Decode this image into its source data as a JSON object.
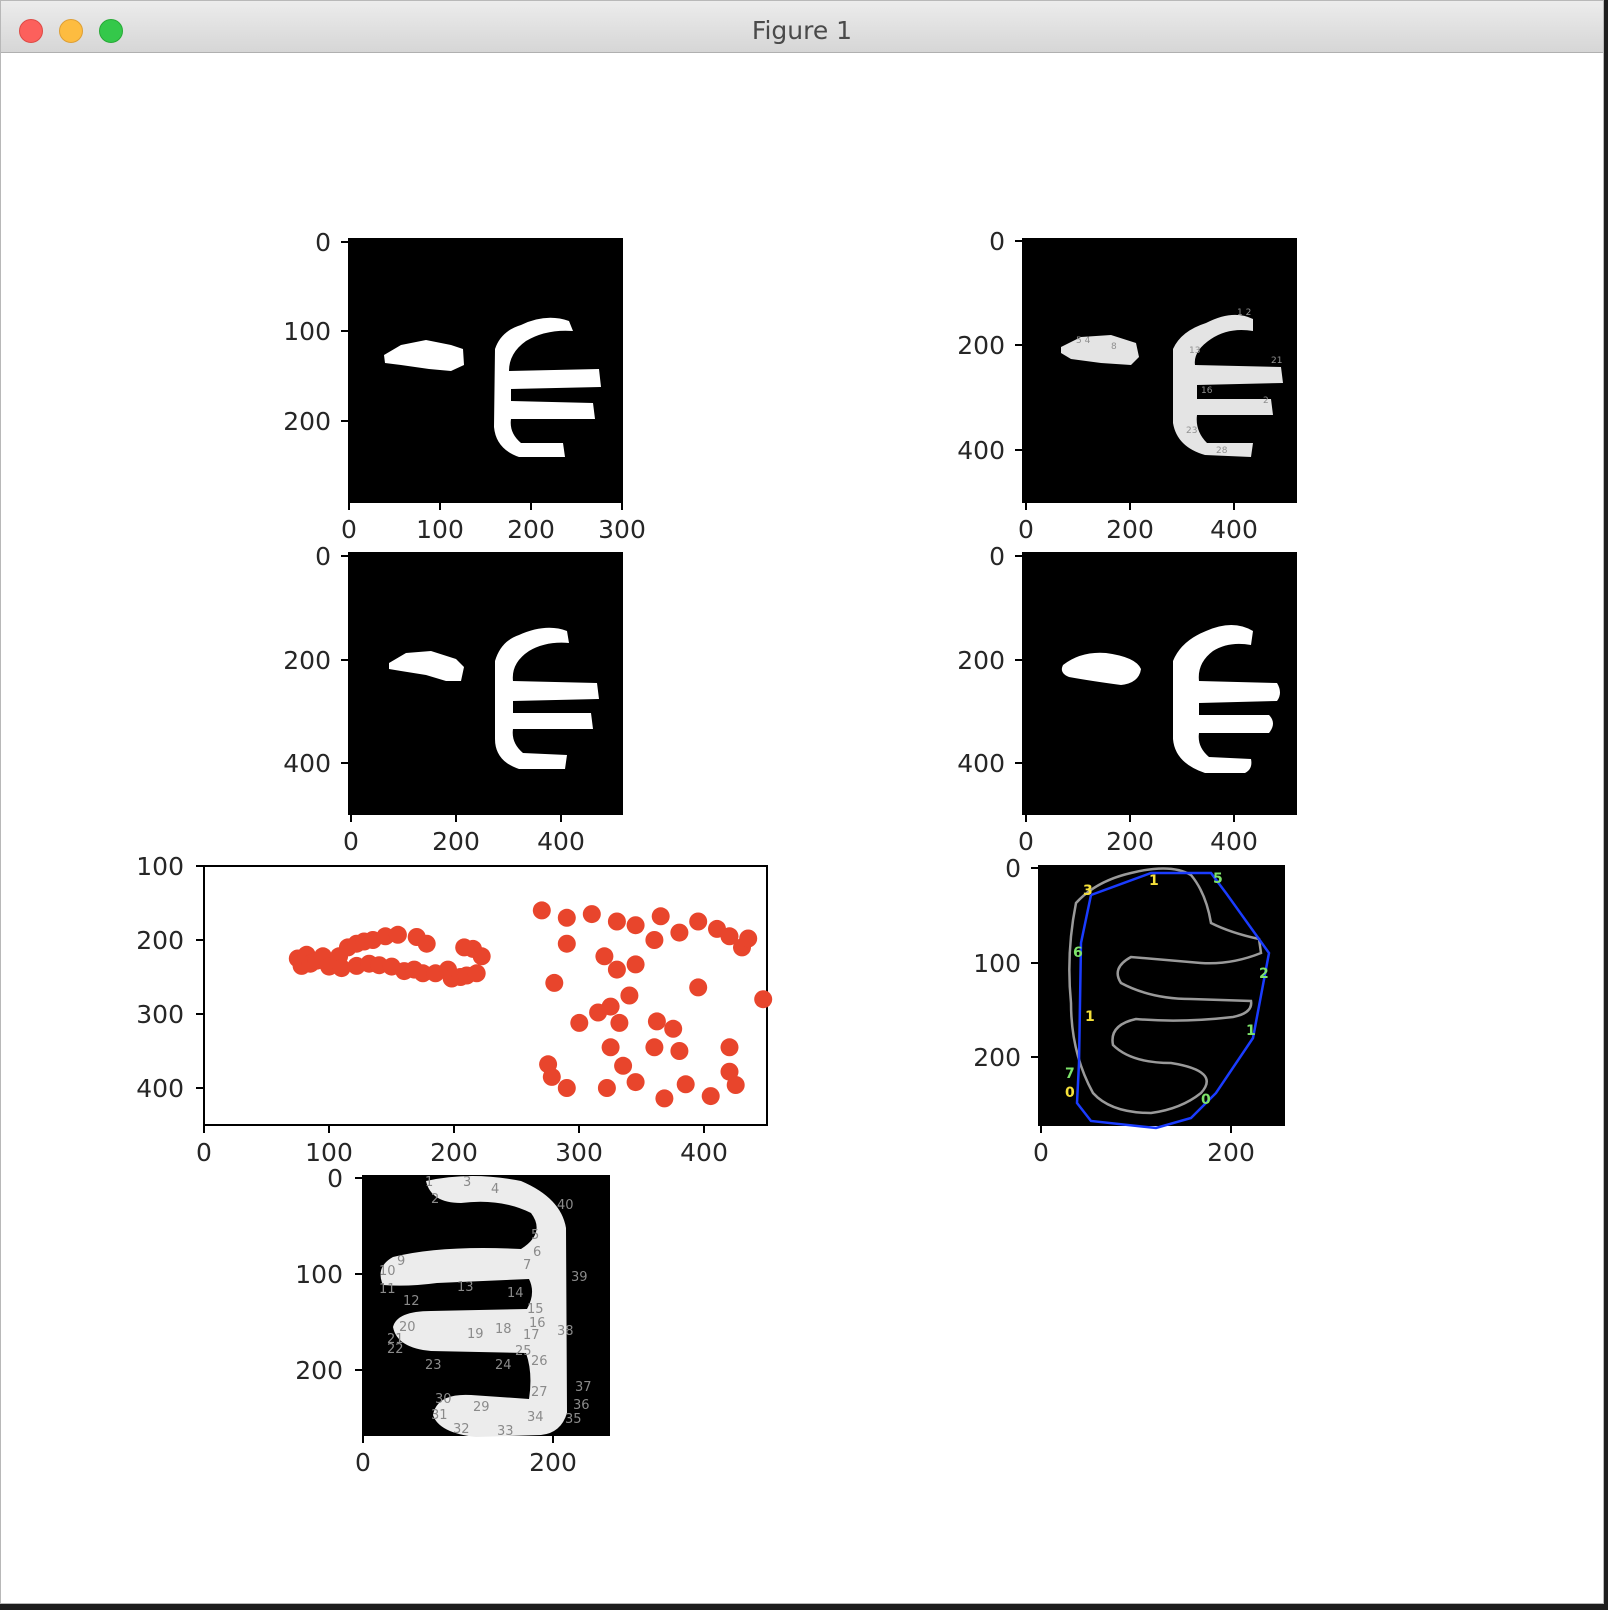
{
  "window": {
    "title": "Figure 1",
    "buttons": [
      "close",
      "minimize",
      "zoom"
    ]
  },
  "chart_data": [
    {
      "panel": "top-left",
      "type": "image",
      "content": "binary mask",
      "x_ticks": [
        "0",
        "100",
        "200",
        "300"
      ],
      "y_ticks": [
        "0",
        "100",
        "200"
      ],
      "xlim": [
        0,
        300
      ],
      "ylim": [
        300,
        0
      ]
    },
    {
      "panel": "top-right",
      "type": "image",
      "content": "mask with labeled contour points",
      "x_ticks": [
        "0",
        "200",
        "400"
      ],
      "y_ticks": [
        "0",
        "200",
        "400"
      ],
      "xlim": [
        0,
        520
      ],
      "ylim": [
        500,
        0
      ]
    },
    {
      "panel": "middle-left",
      "type": "image",
      "content": "binary mask",
      "x_ticks": [
        "0",
        "200",
        "400"
      ],
      "y_ticks": [
        "0",
        "200",
        "400"
      ],
      "xlim": [
        0,
        520
      ],
      "ylim": [
        500,
        0
      ]
    },
    {
      "panel": "middle-right",
      "type": "image",
      "content": "smoothed mask",
      "x_ticks": [
        "0",
        "200",
        "400"
      ],
      "y_ticks": [
        "0",
        "200",
        "400"
      ],
      "xlim": [
        0,
        520
      ],
      "ylim": [
        500,
        0
      ]
    },
    {
      "panel": "scatter",
      "type": "scatter",
      "color": "#e8452c",
      "x_ticks": [
        "0",
        "100",
        "200",
        "300",
        "400"
      ],
      "y_ticks": [
        "100",
        "200",
        "300",
        "400"
      ],
      "xlim": [
        0,
        450
      ],
      "ylim": [
        450,
        100
      ],
      "points": [
        [
          75,
          225
        ],
        [
          78,
          235
        ],
        [
          82,
          220
        ],
        [
          85,
          232
        ],
        [
          90,
          228
        ],
        [
          95,
          222
        ],
        [
          100,
          236
        ],
        [
          108,
          222
        ],
        [
          115,
          210
        ],
        [
          122,
          205
        ],
        [
          128,
          202
        ],
        [
          135,
          200
        ],
        [
          145,
          195
        ],
        [
          155,
          193
        ],
        [
          170,
          196
        ],
        [
          178,
          205
        ],
        [
          110,
          238
        ],
        [
          122,
          235
        ],
        [
          132,
          232
        ],
        [
          140,
          234
        ],
        [
          150,
          236
        ],
        [
          160,
          242
        ],
        [
          168,
          240
        ],
        [
          175,
          245
        ],
        [
          185,
          245
        ],
        [
          195,
          240
        ],
        [
          198,
          252
        ],
        [
          205,
          250
        ],
        [
          210,
          248
        ],
        [
          218,
          245
        ],
        [
          222,
          222
        ],
        [
          215,
          212
        ],
        [
          208,
          210
        ],
        [
          270,
          160
        ],
        [
          290,
          170
        ],
        [
          310,
          165
        ],
        [
          330,
          175
        ],
        [
          345,
          180
        ],
        [
          360,
          200
        ],
        [
          365,
          168
        ],
        [
          380,
          190
        ],
        [
          395,
          175
        ],
        [
          410,
          185
        ],
        [
          420,
          195
        ],
        [
          430,
          210
        ],
        [
          435,
          198
        ],
        [
          290,
          205
        ],
        [
          320,
          222
        ],
        [
          330,
          240
        ],
        [
          345,
          233
        ],
        [
          280,
          258
        ],
        [
          300,
          312
        ],
        [
          315,
          298
        ],
        [
          325,
          290
        ],
        [
          340,
          275
        ],
        [
          332,
          312
        ],
        [
          362,
          310
        ],
        [
          375,
          320
        ],
        [
          395,
          264
        ],
        [
          325,
          345
        ],
        [
          360,
          345
        ],
        [
          380,
          350
        ],
        [
          420,
          345
        ],
        [
          335,
          370
        ],
        [
          275,
          368
        ],
        [
          278,
          385
        ],
        [
          290,
          400
        ],
        [
          322,
          400
        ],
        [
          345,
          392
        ],
        [
          368,
          414
        ],
        [
          385,
          395
        ],
        [
          405,
          411
        ],
        [
          420,
          378
        ],
        [
          425,
          396
        ],
        [
          447,
          280
        ]
      ]
    },
    {
      "panel": "hull",
      "type": "image",
      "content": "contour with convex hull",
      "x_ticks": [
        "0",
        "200"
      ],
      "y_ticks": [
        "0",
        "100",
        "200"
      ],
      "xlim": [
        0,
        260
      ],
      "ylim": [
        275,
        0
      ],
      "hull_labels": [
        "3",
        "5",
        "1",
        "6",
        "1",
        "2",
        "1",
        "7",
        "0",
        "0"
      ]
    },
    {
      "panel": "bottom",
      "type": "image",
      "content": "mask with numbered contour points",
      "x_ticks": [
        "0",
        "200"
      ],
      "y_ticks": [
        "0",
        "100",
        "200"
      ],
      "xlim": [
        0,
        260
      ],
      "ylim": [
        275,
        0
      ],
      "point_labels": [
        "1",
        "2",
        "3",
        "4",
        "5",
        "6",
        "7",
        "8",
        "9",
        "10",
        "11",
        "12",
        "13",
        "14",
        "15",
        "16",
        "17",
        "18",
        "19",
        "20",
        "21",
        "22",
        "23",
        "24",
        "25",
        "26",
        "27",
        "28",
        "29",
        "30",
        "31",
        "32",
        "33",
        "34",
        "35",
        "36",
        "37",
        "38",
        "39",
        "40"
      ]
    }
  ]
}
